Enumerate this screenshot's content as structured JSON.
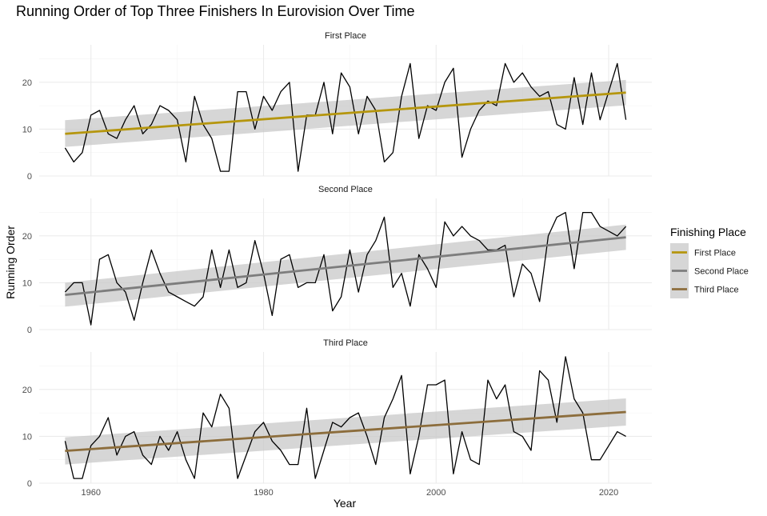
{
  "chart_data": {
    "type": "line",
    "title": "Running Order of Top Three Finishers In Eurovision Over Time",
    "xlabel": "Year",
    "ylabel": "Running Order",
    "xlim": [
      1954,
      2025
    ],
    "ylim": [
      0,
      28
    ],
    "x_ticks": [
      1960,
      1980,
      2000,
      2020
    ],
    "y_ticks": [
      0,
      10,
      20
    ],
    "grid": true,
    "legend": {
      "title": "Finishing Place",
      "position": "right",
      "entries": [
        "First Place",
        "Second Place",
        "Third Place"
      ]
    },
    "colors": {
      "raw_line": "#000000",
      "ribbon": "#c8c8c8",
      "grid_major": "#ebebeb",
      "grid_minor": "#f4f4f4"
    },
    "panels": [
      {
        "name": "First Place",
        "trend_color": "#b5960e",
        "trend": {
          "x": [
            1957,
            2022
          ],
          "y": [
            9.0,
            17.8
          ]
        },
        "band": {
          "lower": [
            6.2,
            15.1
          ],
          "upper": [
            11.9,
            20.5
          ]
        },
        "x": [
          1957,
          1958,
          1959,
          1960,
          1961,
          1962,
          1963,
          1964,
          1965,
          1966,
          1967,
          1968,
          1969,
          1970,
          1971,
          1972,
          1973,
          1974,
          1975,
          1976,
          1977,
          1978,
          1979,
          1980,
          1981,
          1982,
          1983,
          1984,
          1985,
          1986,
          1987,
          1988,
          1989,
          1990,
          1991,
          1992,
          1993,
          1994,
          1995,
          1996,
          1997,
          1998,
          1999,
          2000,
          2001,
          2002,
          2003,
          2004,
          2005,
          2006,
          2007,
          2008,
          2009,
          2010,
          2011,
          2012,
          2013,
          2014,
          2015,
          2016,
          2017,
          2018,
          2019,
          2021,
          2022
        ],
        "values": [
          6,
          3,
          5,
          13,
          14,
          9,
          8,
          12,
          15,
          9,
          11,
          15,
          14,
          12,
          3,
          17,
          11,
          8,
          1,
          1,
          18,
          18,
          10,
          17,
          14,
          18,
          20,
          1,
          13,
          13,
          20,
          9,
          22,
          19,
          9,
          17,
          14,
          3,
          5,
          17,
          24,
          8,
          15,
          14,
          20,
          23,
          4,
          10,
          14,
          16,
          15,
          24,
          20,
          22,
          19,
          17,
          18,
          11,
          10,
          21,
          11,
          22,
          12,
          24,
          12
        ]
      },
      {
        "name": "Second Place",
        "trend_color": "#7d7d7d",
        "trend": {
          "x": [
            1957,
            2022
          ],
          "y": [
            7.4,
            19.7
          ]
        },
        "band": {
          "lower": [
            4.9,
            17.0
          ],
          "upper": [
            10.0,
            22.4
          ]
        },
        "x": [
          1957,
          1958,
          1959,
          1960,
          1961,
          1962,
          1963,
          1964,
          1965,
          1966,
          1967,
          1968,
          1969,
          1970,
          1971,
          1972,
          1973,
          1974,
          1975,
          1976,
          1977,
          1978,
          1979,
          1980,
          1981,
          1982,
          1983,
          1984,
          1985,
          1986,
          1987,
          1988,
          1989,
          1990,
          1991,
          1992,
          1993,
          1994,
          1995,
          1996,
          1997,
          1998,
          1999,
          2000,
          2001,
          2002,
          2003,
          2004,
          2005,
          2006,
          2007,
          2008,
          2009,
          2010,
          2011,
          2012,
          2013,
          2014,
          2015,
          2016,
          2017,
          2018,
          2019,
          2021,
          2022
        ],
        "values": [
          8,
          10,
          10,
          1,
          15,
          16,
          10,
          8,
          2,
          10,
          17,
          12,
          8,
          7,
          6,
          5,
          7,
          17,
          9,
          17,
          9,
          10,
          19,
          12,
          3,
          15,
          16,
          9,
          10,
          10,
          16,
          4,
          7,
          17,
          8,
          16,
          19,
          24,
          9,
          12,
          5,
          16,
          13,
          9,
          23,
          20,
          22,
          20,
          19,
          17,
          17,
          18,
          7,
          14,
          12,
          6,
          20,
          24,
          25,
          13,
          25,
          25,
          22,
          20,
          22
        ]
      },
      {
        "name": "Third Place",
        "trend_color": "#8c6d3c",
        "trend": {
          "x": [
            1957,
            2022
          ],
          "y": [
            6.9,
            15.2
          ]
        },
        "band": {
          "lower": [
            4.0,
            12.3
          ],
          "upper": [
            9.8,
            18.1
          ]
        },
        "x": [
          1957,
          1958,
          1959,
          1960,
          1961,
          1962,
          1963,
          1964,
          1965,
          1966,
          1967,
          1968,
          1969,
          1970,
          1971,
          1972,
          1973,
          1974,
          1975,
          1976,
          1977,
          1978,
          1979,
          1980,
          1981,
          1982,
          1983,
          1984,
          1985,
          1986,
          1987,
          1988,
          1989,
          1990,
          1991,
          1992,
          1993,
          1994,
          1995,
          1996,
          1997,
          1998,
          1999,
          2000,
          2001,
          2002,
          2003,
          2004,
          2005,
          2006,
          2007,
          2008,
          2009,
          2010,
          2011,
          2012,
          2013,
          2014,
          2015,
          2016,
          2017,
          2018,
          2019,
          2021,
          2022
        ],
        "values": [
          9,
          1,
          1,
          8,
          10,
          14,
          6,
          10,
          11,
          6,
          4,
          10,
          7,
          11,
          5,
          1,
          15,
          12,
          19,
          16,
          1,
          6,
          11,
          13,
          9,
          7,
          4,
          4,
          16,
          1,
          7,
          13,
          12,
          14,
          15,
          10,
          4,
          14,
          18,
          23,
          2,
          10,
          21,
          21,
          22,
          2,
          11,
          5,
          4,
          22,
          18,
          21,
          11,
          10,
          7,
          24,
          22,
          13,
          27,
          18,
          15,
          5,
          5,
          11,
          10
        ]
      }
    ]
  }
}
